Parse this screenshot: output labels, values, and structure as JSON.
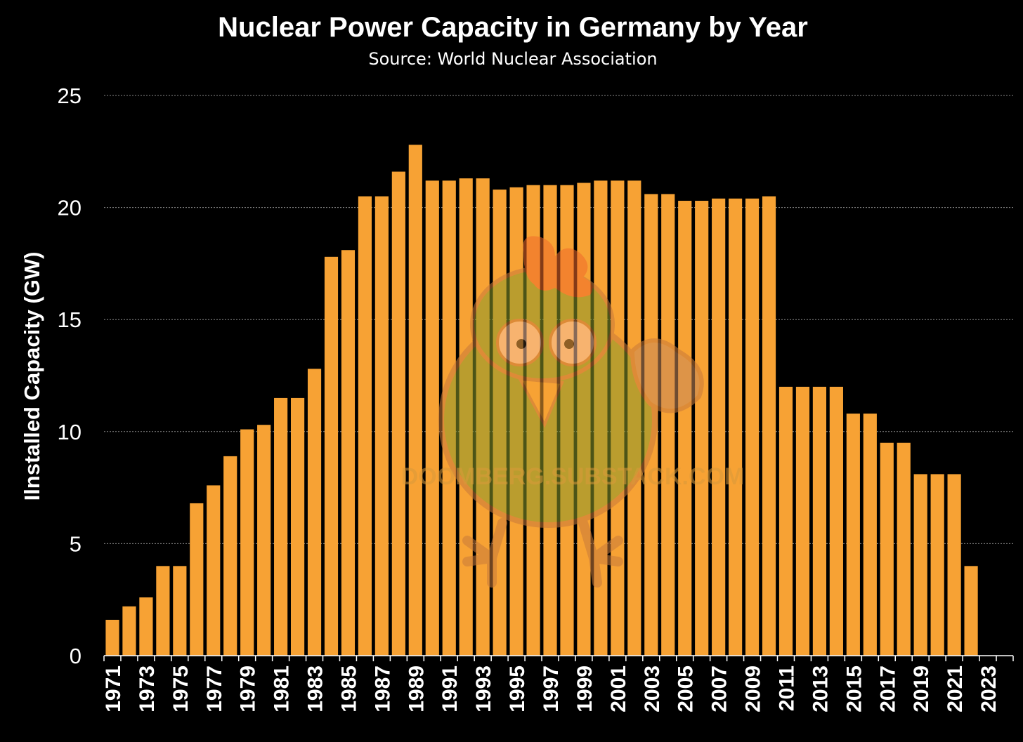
{
  "chart_data": {
    "type": "bar",
    "title": "Nuclear Power Capacity in Germany by Year",
    "subtitle": "Source: World Nuclear Association",
    "xlabel": "",
    "ylabel": "Ilnstalled Capacity (GW)",
    "ylim": [
      0,
      25
    ],
    "yticks": [
      "0",
      "5",
      "10",
      "15",
      "20",
      "25"
    ],
    "ytick_values": [
      0,
      5,
      10,
      15,
      20,
      25
    ],
    "grid": true,
    "bar_color": "#f7a234",
    "categories": [
      "1971",
      "1972",
      "1973",
      "1974",
      "1975",
      "1976",
      "1977",
      "1978",
      "1979",
      "1980",
      "1981",
      "1982",
      "1983",
      "1984",
      "1985",
      "1986",
      "1987",
      "1988",
      "1989",
      "1990",
      "1991",
      "1992",
      "1993",
      "1994",
      "1995",
      "1996",
      "1997",
      "1998",
      "1999",
      "2000",
      "2001",
      "2002",
      "2003",
      "2004",
      "2005",
      "2006",
      "2007",
      "2008",
      "2009",
      "2010",
      "2011",
      "2012",
      "2013",
      "2014",
      "2015",
      "2016",
      "2017",
      "2018",
      "2019",
      "2020",
      "2021",
      "2022",
      "2023",
      "2024"
    ],
    "xtick_labels": [
      "1971",
      "1973",
      "1975",
      "1977",
      "1979",
      "1981",
      "1983",
      "1985",
      "1987",
      "1989",
      "1991",
      "1993",
      "1995",
      "1997",
      "1999",
      "2001",
      "2003",
      "2005",
      "2007",
      "2009",
      "2011",
      "2013",
      "2015",
      "2017",
      "2019",
      "2021",
      "2023"
    ],
    "values": [
      1.6,
      2.2,
      2.6,
      4.0,
      4.0,
      6.8,
      7.6,
      8.9,
      10.1,
      10.3,
      11.5,
      11.5,
      12.8,
      17.8,
      18.1,
      20.5,
      20.5,
      21.6,
      22.8,
      21.2,
      21.2,
      21.3,
      21.3,
      20.8,
      20.9,
      21.0,
      21.0,
      21.0,
      21.1,
      21.2,
      21.2,
      21.2,
      20.6,
      20.6,
      20.3,
      20.3,
      20.4,
      20.4,
      20.4,
      20.5,
      12.0,
      12.0,
      12.0,
      12.0,
      10.8,
      10.8,
      9.5,
      9.5,
      8.1,
      8.1,
      8.1,
      4.0,
      0,
      0
    ]
  },
  "watermark": {
    "text": "DOOMBERG.SUBSTACK.COM",
    "icon": "chicken-mascot-icon"
  }
}
